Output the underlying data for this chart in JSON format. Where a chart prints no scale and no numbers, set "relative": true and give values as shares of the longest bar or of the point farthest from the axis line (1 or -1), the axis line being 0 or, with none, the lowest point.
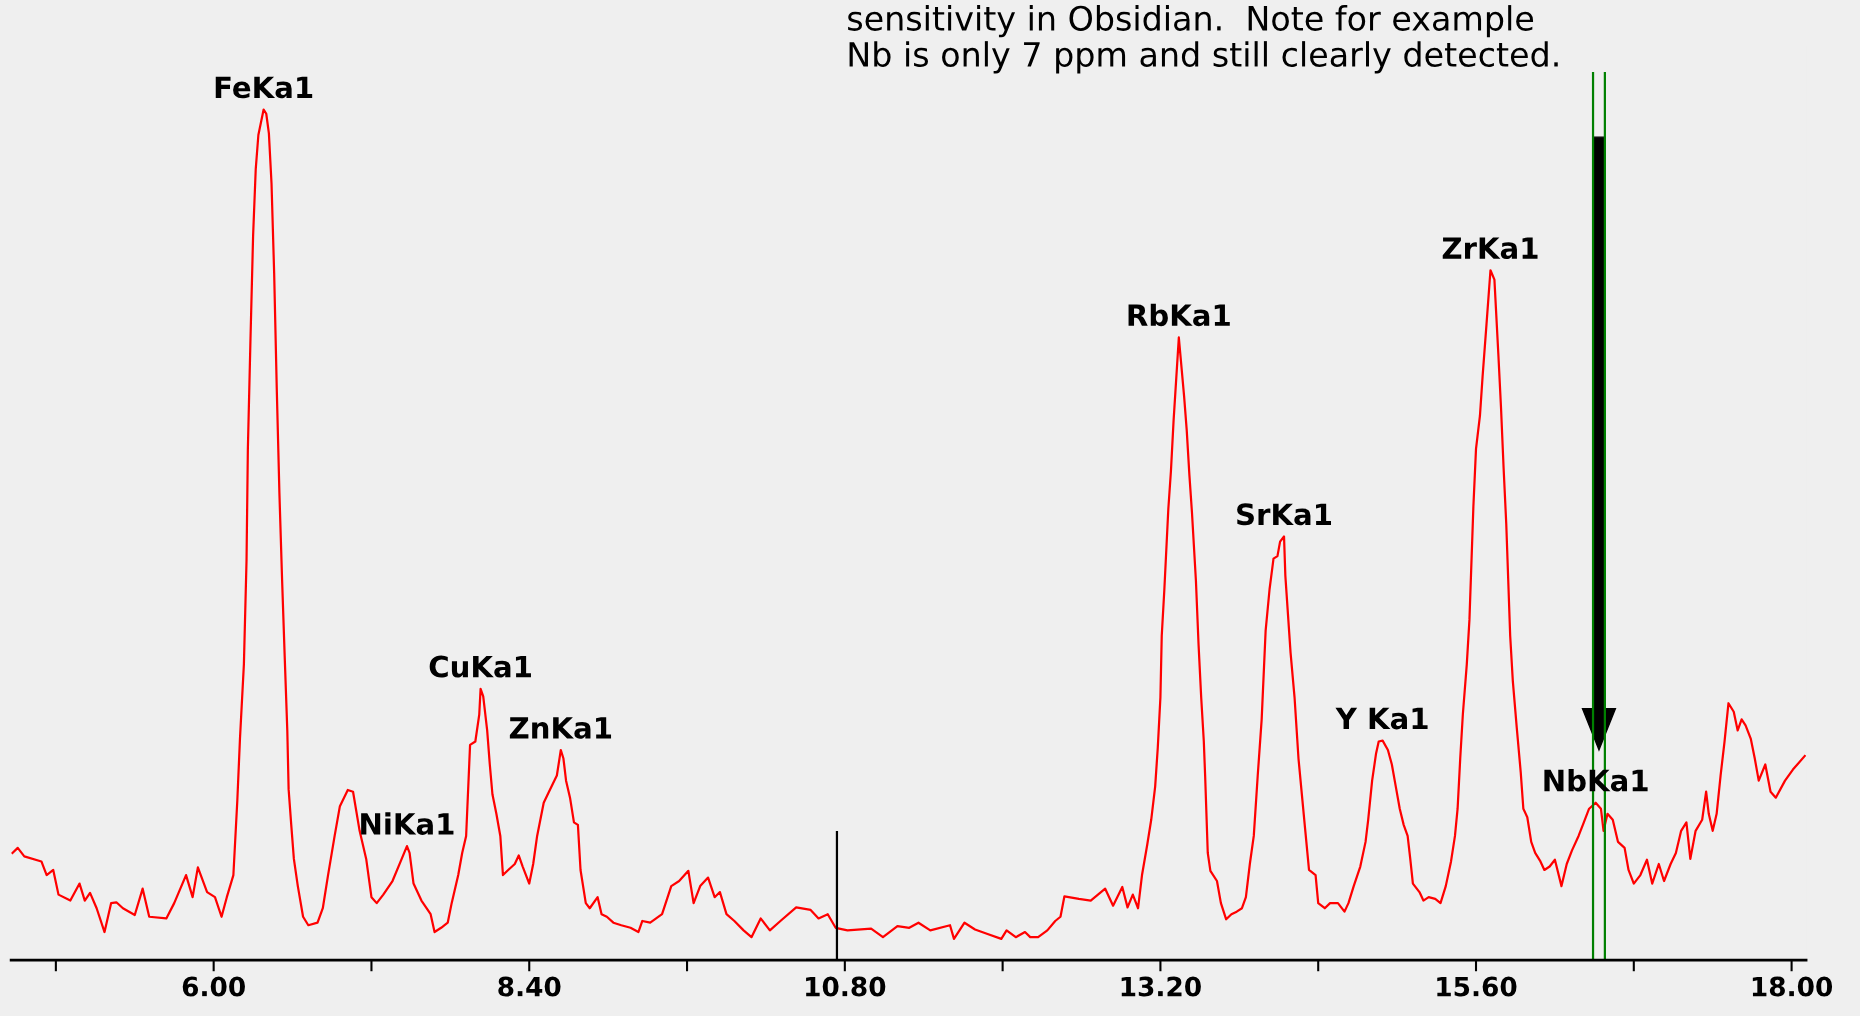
{
  "chart_data": {
    "type": "line",
    "relative": true,
    "x": [
      4.47,
      4.51,
      4.56,
      4.69,
      4.73,
      4.78,
      4.82,
      4.91,
      4.98,
      5.02,
      5.06,
      5.11,
      5.17,
      5.22,
      5.26,
      5.31,
      5.4,
      5.46,
      5.51,
      5.64,
      5.7,
      5.79,
      5.84,
      5.88,
      5.95,
      6.01,
      6.06,
      6.1,
      6.15,
      6.18,
      6.2,
      6.23,
      6.25,
      6.26,
      6.28,
      6.3,
      6.32,
      6.34,
      6.38,
      6.4,
      6.42,
      6.44,
      6.46,
      6.48,
      6.5,
      6.52,
      6.54,
      6.56,
      6.57,
      6.59,
      6.61,
      6.64,
      6.68,
      6.72,
      6.79,
      6.83,
      6.87,
      6.92,
      6.96,
      7.02,
      7.06,
      7.11,
      7.16,
      7.2,
      7.24,
      7.29,
      7.36,
      7.43,
      7.47,
      7.49,
      7.52,
      7.58,
      7.65,
      7.68,
      7.73,
      7.78,
      7.81,
      7.86,
      7.89,
      7.92,
      7.95,
      7.99,
      8.02,
      8.03,
      8.05,
      8.08,
      8.1,
      8.12,
      8.15,
      8.18,
      8.2,
      8.24,
      8.29,
      8.32,
      8.35,
      8.4,
      8.43,
      8.46,
      8.51,
      8.55,
      8.61,
      8.64,
      8.66,
      8.68,
      8.71,
      8.74,
      8.77,
      8.79,
      8.83,
      8.86,
      8.92,
      8.95,
      8.99,
      9.04,
      9.1,
      9.17,
      9.23,
      9.26,
      9.32,
      9.41,
      9.48,
      9.54,
      9.61,
      9.65,
      9.7,
      9.76,
      9.81,
      9.85,
      9.9,
      9.96,
      10.03,
      10.09,
      10.16,
      10.23,
      10.31,
      10.43,
      10.54,
      10.6,
      10.67,
      10.73,
      10.82,
      11.0,
      11.09,
      11.2,
      11.29,
      11.36,
      11.45,
      11.6,
      11.63,
      11.71,
      11.79,
      11.88,
      11.99,
      12.03,
      12.1,
      12.17,
      12.21,
      12.27,
      12.34,
      12.4,
      12.44,
      12.47,
      12.58,
      12.67,
      12.78,
      12.84,
      12.91,
      12.95,
      12.99,
      13.03,
      13.06,
      13.1,
      13.13,
      13.16,
      13.18,
      13.2,
      13.21,
      13.23,
      13.26,
      13.28,
      13.3,
      13.34,
      13.38,
      13.4,
      13.42,
      13.44,
      13.47,
      13.49,
      13.51,
      13.53,
      13.54,
      13.56,
      13.58,
      13.63,
      13.66,
      13.7,
      13.74,
      13.78,
      13.82,
      13.85,
      13.88,
      13.91,
      13.94,
      13.97,
      14.0,
      14.03,
      14.06,
      14.09,
      14.11,
      14.14,
      14.15,
      14.19,
      14.22,
      14.25,
      14.27,
      14.3,
      14.33,
      14.38,
      14.4,
      14.45,
      14.49,
      14.55,
      14.6,
      14.63,
      14.67,
      14.72,
      14.76,
      14.78,
      14.81,
      14.84,
      14.86,
      14.89,
      14.93,
      14.96,
      14.99,
      15.02,
      15.05,
      15.08,
      15.1,
      15.12,
      15.17,
      15.2,
      15.24,
      15.29,
      15.33,
      15.37,
      15.41,
      15.44,
      15.46,
      15.48,
      15.5,
      15.53,
      15.55,
      15.58,
      15.6,
      15.63,
      15.65,
      15.68,
      15.71,
      15.74,
      15.77,
      15.79,
      15.81,
      15.83,
      15.86,
      15.88,
      15.91,
      15.94,
      15.96,
      15.99,
      16.02,
      16.05,
      16.09,
      16.12,
      16.16,
      16.2,
      16.25,
      16.29,
      16.33,
      16.38,
      16.42,
      16.46,
      16.51,
      16.55,
      16.57,
      16.6,
      16.64,
      16.68,
      16.73,
      16.76,
      16.8,
      16.85,
      16.9,
      16.94,
      16.99,
      17.03,
      17.08,
      17.12,
      17.16,
      17.2,
      17.23,
      17.27,
      17.32,
      17.35,
      17.37,
      17.4,
      17.43,
      17.46,
      17.49,
      17.52,
      17.56,
      17.59,
      17.62,
      17.65,
      17.69,
      17.72,
      17.75,
      17.8,
      17.84,
      17.88,
      17.95,
      18.01,
      18.1
    ],
    "series": [
      {
        "color": "#ff0000",
        "values": [
          0.126,
          0.132,
          0.122,
          0.116,
          0.1,
          0.106,
          0.077,
          0.07,
          0.09,
          0.07,
          0.079,
          0.061,
          0.033,
          0.067,
          0.068,
          0.061,
          0.053,
          0.084,
          0.051,
          0.049,
          0.067,
          0.1,
          0.074,
          0.109,
          0.08,
          0.074,
          0.051,
          0.074,
          0.1,
          0.188,
          0.26,
          0.348,
          0.47,
          0.6,
          0.73,
          0.852,
          0.93,
          0.97,
          1.0,
          0.995,
          0.972,
          0.913,
          0.808,
          0.671,
          0.549,
          0.449,
          0.358,
          0.27,
          0.201,
          0.159,
          0.119,
          0.087,
          0.051,
          0.041,
          0.044,
          0.061,
          0.1,
          0.146,
          0.181,
          0.2,
          0.198,
          0.152,
          0.119,
          0.074,
          0.067,
          0.077,
          0.093,
          0.119,
          0.134,
          0.126,
          0.09,
          0.07,
          0.054,
          0.033,
          0.038,
          0.044,
          0.067,
          0.1,
          0.126,
          0.146,
          0.253,
          0.257,
          0.289,
          0.319,
          0.31,
          0.27,
          0.23,
          0.195,
          0.172,
          0.146,
          0.1,
          0.106,
          0.113,
          0.123,
          0.11,
          0.09,
          0.113,
          0.146,
          0.185,
          0.198,
          0.217,
          0.247,
          0.237,
          0.211,
          0.191,
          0.162,
          0.159,
          0.106,
          0.067,
          0.061,
          0.074,
          0.054,
          0.051,
          0.044,
          0.041,
          0.038,
          0.033,
          0.046,
          0.044,
          0.054,
          0.087,
          0.093,
          0.105,
          0.067,
          0.087,
          0.097,
          0.074,
          0.08,
          0.054,
          0.046,
          0.035,
          0.027,
          0.049,
          0.035,
          0.046,
          0.062,
          0.059,
          0.049,
          0.054,
          0.038,
          0.035,
          0.037,
          0.027,
          0.04,
          0.038,
          0.044,
          0.035,
          0.041,
          0.025,
          0.044,
          0.036,
          0.031,
          0.025,
          0.035,
          0.027,
          0.033,
          0.027,
          0.027,
          0.035,
          0.046,
          0.051,
          0.075,
          0.072,
          0.07,
          0.084,
          0.064,
          0.086,
          0.062,
          0.077,
          0.061,
          0.1,
          0.136,
          0.165,
          0.204,
          0.25,
          0.309,
          0.381,
          0.436,
          0.53,
          0.575,
          0.634,
          0.732,
          0.663,
          0.623,
          0.571,
          0.526,
          0.446,
          0.371,
          0.309,
          0.257,
          0.217,
          0.126,
          0.105,
          0.093,
          0.067,
          0.048,
          0.054,
          0.057,
          0.061,
          0.074,
          0.113,
          0.146,
          0.217,
          0.283,
          0.387,
          0.436,
          0.472,
          0.475,
          0.492,
          0.498,
          0.452,
          0.361,
          0.309,
          0.237,
          0.204,
          0.155,
          0.106,
          0.1,
          0.067,
          0.061,
          0.067,
          0.067,
          0.057,
          0.067,
          0.087,
          0.11,
          0.139,
          0.165,
          0.211,
          0.243,
          0.257,
          0.258,
          0.247,
          0.23,
          0.204,
          0.178,
          0.159,
          0.146,
          0.119,
          0.09,
          0.08,
          0.07,
          0.074,
          0.072,
          0.067,
          0.087,
          0.116,
          0.146,
          0.178,
          0.237,
          0.289,
          0.348,
          0.4,
          0.533,
          0.601,
          0.64,
          0.686,
          0.748,
          0.811,
          0.8,
          0.712,
          0.65,
          0.578,
          0.513,
          0.381,
          0.328,
          0.273,
          0.221,
          0.178,
          0.168,
          0.139,
          0.126,
          0.116,
          0.106,
          0.11,
          0.118,
          0.087,
          0.113,
          0.129,
          0.146,
          0.162,
          0.178,
          0.185,
          0.178,
          0.152,
          0.172,
          0.165,
          0.139,
          0.132,
          0.106,
          0.09,
          0.1,
          0.118,
          0.09,
          0.113,
          0.093,
          0.113,
          0.126,
          0.152,
          0.162,
          0.119,
          0.152,
          0.165,
          0.198,
          0.172,
          0.152,
          0.172,
          0.217,
          0.257,
          0.302,
          0.292,
          0.27,
          0.283,
          0.276,
          0.26,
          0.237,
          0.211,
          0.23,
          0.198,
          0.191,
          0.211,
          0.224,
          0.24
        ]
      }
    ],
    "xlim": [
      4.46,
      18.11
    ],
    "xticks": [
      {
        "value": 4.8,
        "label": null
      },
      {
        "value": 6.0,
        "label": "6.00"
      },
      {
        "value": 7.2,
        "label": null
      },
      {
        "value": 8.4,
        "label": "8.40"
      },
      {
        "value": 9.6,
        "label": null
      },
      {
        "value": 10.8,
        "label": "10.80"
      },
      {
        "value": 12.0,
        "label": null
      },
      {
        "value": 13.2,
        "label": "13.20"
      },
      {
        "value": 14.4,
        "label": null
      },
      {
        "value": 15.6,
        "label": "15.60"
      },
      {
        "value": 16.8,
        "label": null
      },
      {
        "value": 18.0,
        "label": "18.00"
      }
    ],
    "tick_labels": "x",
    "grid": false,
    "legend": false,
    "marker": "none",
    "line_style": "solid",
    "ref_lines": [
      {
        "axis": "x",
        "value": 10.74,
        "color": "#000000"
      },
      {
        "axis": "x",
        "value": 16.49,
        "color": "#008000"
      },
      {
        "axis": "x",
        "value": 16.58,
        "color": "#008000"
      }
    ],
    "annotations": [
      {
        "text": "FeKa1",
        "x": 6.38,
        "y": 1.0
      },
      {
        "text": "NiKa1",
        "x": 7.47,
        "y": 0.134
      },
      {
        "text": "CuKa1",
        "x": 8.03,
        "y": 0.319
      },
      {
        "text": "ZnKa1",
        "x": 8.64,
        "y": 0.247
      },
      {
        "text": "RbKa1",
        "x": 13.34,
        "y": 0.732
      },
      {
        "text": "SrKa1",
        "x": 14.14,
        "y": 0.498
      },
      {
        "text": "Y Ka1",
        "x": 14.89,
        "y": 0.258
      },
      {
        "text": "ZrKa1",
        "x": 15.71,
        "y": 0.811
      },
      {
        "text": "NbKa1",
        "x": 16.51,
        "y": 0.185
      },
      "sensitivity in Obsidian.  Note for example\nNb is only 7 ppm and still clearly detected."
    ]
  }
}
